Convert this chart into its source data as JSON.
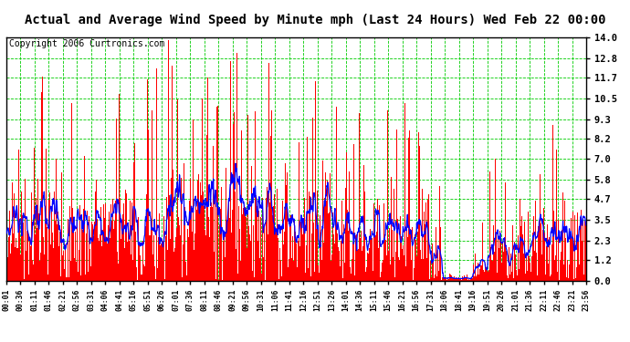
{
  "title": "Actual and Average Wind Speed by Minute mph (Last 24 Hours) Wed Feb 22 00:00",
  "copyright": "Copyright 2006 Curtronics.com",
  "yticks": [
    0.0,
    1.2,
    2.3,
    3.5,
    4.7,
    5.8,
    7.0,
    8.2,
    9.3,
    10.5,
    11.7,
    12.8,
    14.0
  ],
  "ylim": [
    0.0,
    14.0
  ],
  "bar_color": "#FF0000",
  "line_color": "#0000FF",
  "grid_color": "#00CC00",
  "bg_color": "#FFFFFF",
  "title_fontsize": 10,
  "copyright_fontsize": 7,
  "num_points": 1440,
  "xtick_labels": [
    "00:01",
    "00:36",
    "01:11",
    "01:46",
    "02:21",
    "02:56",
    "03:31",
    "04:06",
    "04:41",
    "05:16",
    "05:51",
    "06:26",
    "07:01",
    "07:36",
    "08:11",
    "08:46",
    "09:21",
    "09:56",
    "10:31",
    "11:06",
    "11:41",
    "12:16",
    "12:51",
    "13:26",
    "14:01",
    "14:36",
    "15:11",
    "15:46",
    "16:21",
    "16:56",
    "17:31",
    "18:06",
    "18:41",
    "19:16",
    "19:51",
    "20:26",
    "21:01",
    "21:36",
    "22:11",
    "22:46",
    "23:21",
    "23:56"
  ],
  "figsize": [
    6.9,
    3.75
  ],
  "dpi": 100
}
